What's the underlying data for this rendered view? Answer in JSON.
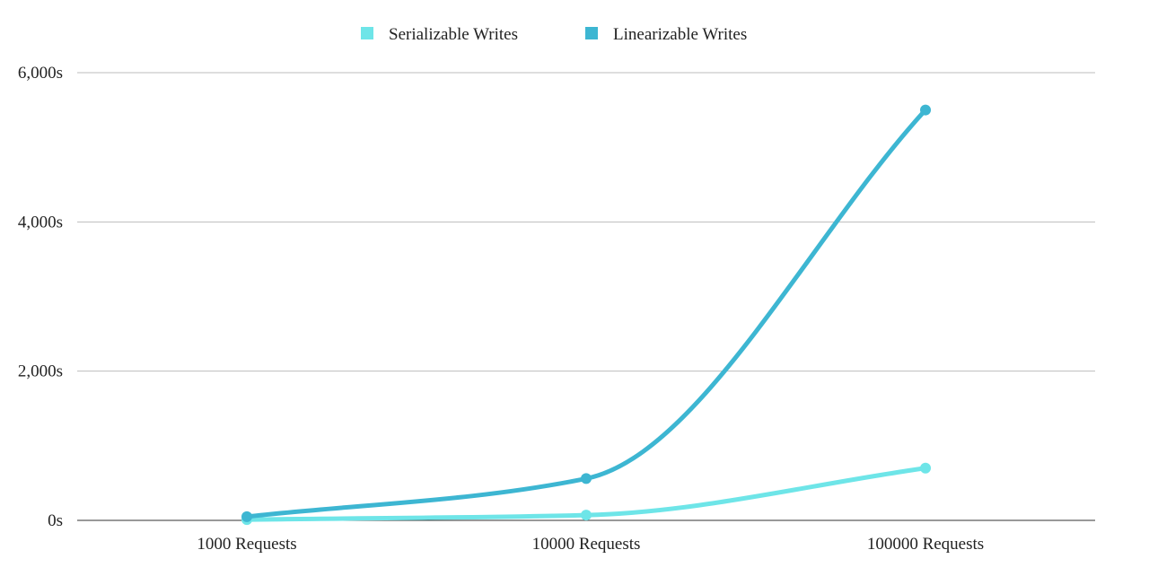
{
  "chart_data": {
    "type": "line",
    "title": "",
    "xlabel": "",
    "ylabel": "",
    "categories": [
      "1000 Requests",
      "10000 Requests",
      "100000 Requests"
    ],
    "y_ticks": [
      0,
      2000,
      4000,
      6000
    ],
    "y_tick_labels": [
      "0s",
      "2,000s",
      "4,000s",
      "6,000s"
    ],
    "ylim": [
      0,
      6000
    ],
    "grid": true,
    "legend_position": "top",
    "smooth": true,
    "series": [
      {
        "name": "Serializable Writes",
        "values": [
          10,
          70,
          700
        ],
        "color": "#6ee5e8"
      },
      {
        "name": "Linearizable Writes",
        "values": [
          50,
          560,
          5500
        ],
        "color": "#3db6d2"
      }
    ]
  }
}
